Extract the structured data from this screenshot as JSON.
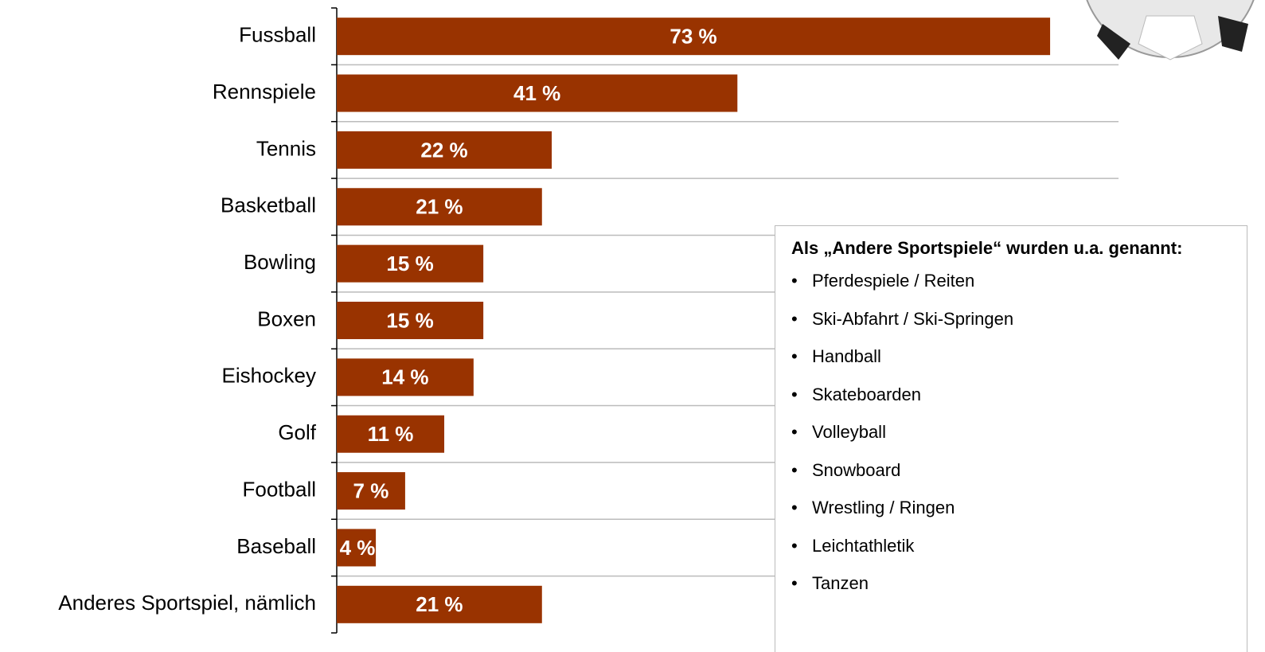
{
  "chart_data": {
    "type": "hbar",
    "categories": [
      "Fussball",
      "Rennspiele",
      "Tennis",
      "Basketball",
      "Bowling",
      "Boxen",
      "Eishockey",
      "Golf",
      "Football",
      "Baseball",
      "Anderes Sportspiel, nämlich"
    ],
    "values": [
      73,
      41,
      22,
      21,
      15,
      15,
      14,
      11,
      7,
      4,
      21
    ],
    "value_labels": [
      "73 %",
      "41 %",
      "22 %",
      "21 %",
      "15 %",
      "15 %",
      "14 %",
      "11 %",
      "7 %",
      "4 %",
      "21 %"
    ],
    "color": "#993300",
    "xlim": [
      0,
      80
    ],
    "grid": true
  },
  "note": {
    "title": "Als „Andere Sportspiele“ wurden u.a. genannt:",
    "items": [
      "Pferdespiele / Reiten",
      "Ski-Abfahrt / Ski-Springen",
      "Handball",
      "Skateboarden",
      "Volleyball",
      "Snowboard",
      "Wrestling / Ringen",
      "Leichtathletik",
      "Tanzen"
    ]
  }
}
